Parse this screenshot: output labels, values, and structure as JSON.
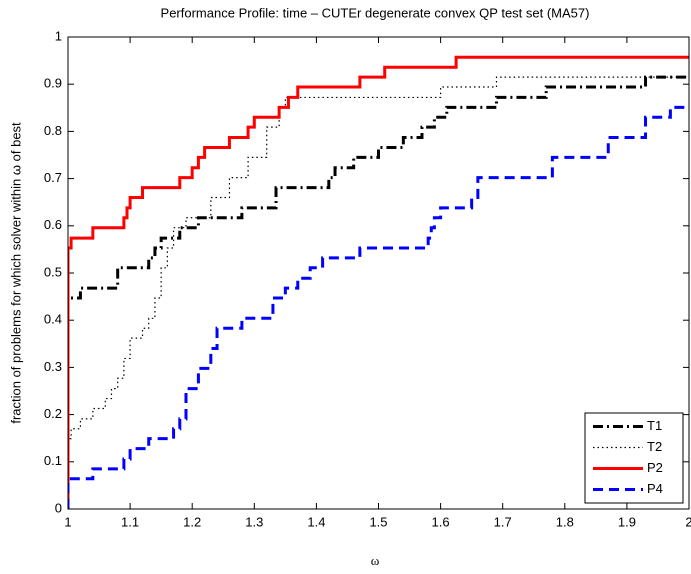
{
  "chart_data": {
    "type": "line",
    "drawstyle": "steps-post",
    "title": "Performance Profile: time – CUTEr degenerate convex QP test set (MA57)",
    "xlabel": "ω",
    "ylabel": "fraction of problems for which solver within ω of best",
    "xlim": [
      1,
      2
    ],
    "ylim": [
      0,
      1
    ],
    "xticks": [
      1,
      1.1,
      1.2,
      1.3,
      1.4,
      1.5,
      1.6,
      1.7,
      1.8,
      1.9,
      2
    ],
    "yticks": [
      0,
      0.1,
      0.2,
      0.3,
      0.4,
      0.5,
      0.6,
      0.7,
      0.8,
      0.9,
      1
    ],
    "legend": "lower right",
    "series": [
      {
        "name": "T1",
        "color": "#000000",
        "dash": "dashdot",
        "linewidth": 3,
        "x": [
          1,
          1,
          1.02,
          1.08,
          1.13,
          1.14,
          1.15,
          1.18,
          1.21,
          1.28,
          1.335,
          1.42,
          1.43,
          1.46,
          1.5,
          1.54,
          1.57,
          1.59,
          1.61,
          1.69,
          1.77,
          1.93,
          2
        ],
        "values": [
          0,
          0.447,
          0.468,
          0.511,
          0.532,
          0.553,
          0.574,
          0.596,
          0.617,
          0.638,
          0.681,
          0.702,
          0.723,
          0.745,
          0.766,
          0.787,
          0.809,
          0.83,
          0.851,
          0.872,
          0.894,
          0.915,
          0.915
        ]
      },
      {
        "name": "T2",
        "color": "#000000",
        "dash": "dotted",
        "linewidth": 1.2,
        "x": [
          1,
          1,
          1.005,
          1.02,
          1.04,
          1.06,
          1.07,
          1.08,
          1.09,
          1.1,
          1.12,
          1.13,
          1.14,
          1.15,
          1.16,
          1.17,
          1.19,
          1.23,
          1.26,
          1.29,
          1.32,
          1.34,
          1.35,
          1.6,
          1.69,
          2
        ],
        "values": [
          0,
          0.149,
          0.17,
          0.191,
          0.213,
          0.234,
          0.255,
          0.277,
          0.319,
          0.362,
          0.383,
          0.404,
          0.447,
          0.511,
          0.553,
          0.596,
          0.617,
          0.66,
          0.702,
          0.745,
          0.809,
          0.851,
          0.872,
          0.894,
          0.915,
          0.915
        ]
      },
      {
        "name": "P2",
        "color": "#ff0000",
        "dash": "solid",
        "linewidth": 3,
        "x": [
          1,
          1,
          1.005,
          1.04,
          1.09,
          1.095,
          1.1,
          1.12,
          1.18,
          1.2,
          1.21,
          1.22,
          1.26,
          1.29,
          1.3,
          1.34,
          1.355,
          1.37,
          1.47,
          1.51,
          1.625,
          2
        ],
        "values": [
          0,
          0.553,
          0.574,
          0.596,
          0.617,
          0.638,
          0.66,
          0.681,
          0.702,
          0.723,
          0.745,
          0.766,
          0.787,
          0.809,
          0.83,
          0.851,
          0.872,
          0.894,
          0.915,
          0.936,
          0.957,
          0.957
        ]
      },
      {
        "name": "P4",
        "color": "#0000ff",
        "dash": "dashed",
        "linewidth": 3,
        "x": [
          1,
          1,
          1.04,
          1.09,
          1.1,
          1.13,
          1.17,
          1.18,
          1.19,
          1.21,
          1.23,
          1.24,
          1.28,
          1.33,
          1.35,
          1.37,
          1.39,
          1.41,
          1.47,
          1.58,
          1.585,
          1.59,
          1.6,
          1.65,
          1.66,
          1.78,
          1.87,
          1.93,
          1.97,
          2
        ],
        "values": [
          0,
          0.064,
          0.085,
          0.106,
          0.128,
          0.149,
          0.17,
          0.191,
          0.255,
          0.298,
          0.34,
          0.383,
          0.404,
          0.447,
          0.468,
          0.489,
          0.511,
          0.532,
          0.553,
          0.574,
          0.596,
          0.617,
          0.638,
          0.66,
          0.702,
          0.745,
          0.787,
          0.83,
          0.851,
          0.851
        ]
      }
    ]
  }
}
